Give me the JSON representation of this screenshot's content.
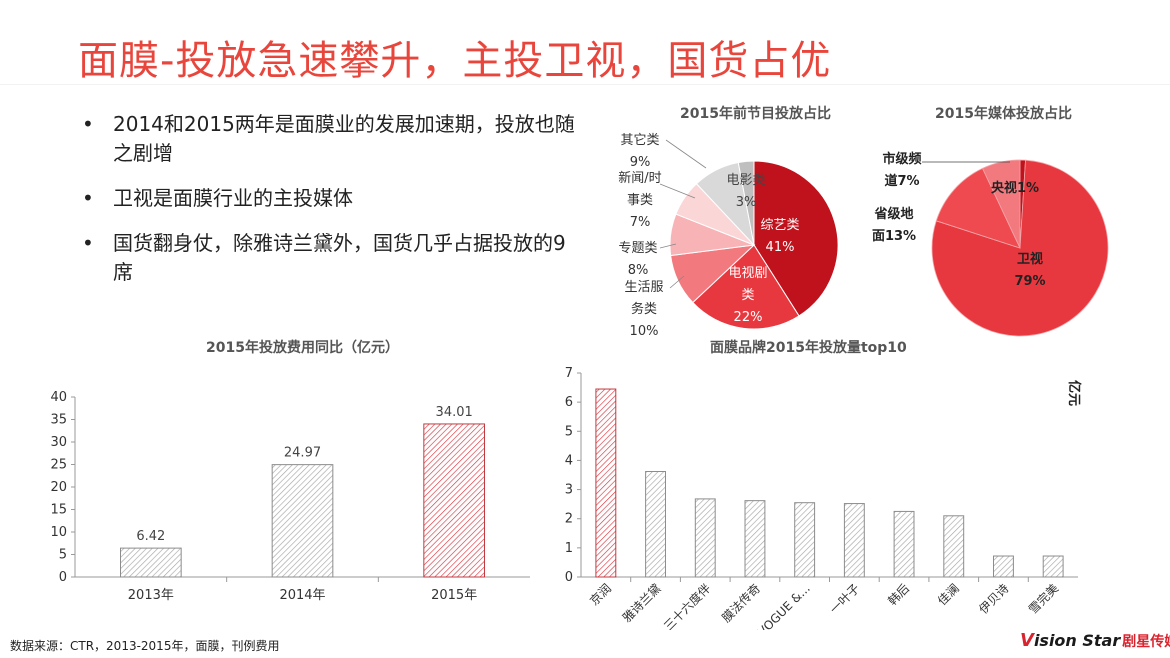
{
  "page": {
    "title": "面膜-投放急速攀升，主投卫视，国货占优",
    "bullets": [
      "2014和2015两年是面膜业的发展加速期，投放也随之剧增",
      "卫视是面膜行业的主投媒体",
      "国货翻身仗，除雅诗兰黛外，国货几乎占据投放的9席"
    ],
    "bullet_symbol": "•",
    "source": "数据来源：CTR，2013-2015年，面膜，刊例费用",
    "logo_text": "ision Star",
    "logo_mark": "V",
    "logo_cn": "剧星传媒"
  },
  "colors": {
    "title": "#e8463c",
    "dark_red": "#c0121c",
    "red": "#e8383f",
    "light_red": "#f27a7f",
    "pink": "#f7b3b6",
    "pale": "#fbd6d7",
    "gray": "#d9d9d9"
  },
  "chart_data": [
    {
      "id": "program",
      "type": "pie",
      "title": "2015年前节目投放占比",
      "slices": [
        {
          "label": "综艺类",
          "value": 41,
          "pct": "41%"
        },
        {
          "label": "电视剧类",
          "value": 22,
          "pct": "22%"
        },
        {
          "label": "生活服务类",
          "value": 10,
          "pct": "10%"
        },
        {
          "label": "专题类",
          "value": 8,
          "pct": "8%"
        },
        {
          "label": "新闻/时事类",
          "value": 7,
          "pct": "7%"
        },
        {
          "label": "其它类",
          "value": 9,
          "pct": "9%"
        },
        {
          "label": "电影类",
          "value": 3,
          "pct": "3%"
        }
      ],
      "label_lines": {
        "综艺类": [
          "综艺类",
          "41%"
        ],
        "电视剧类": [
          "电视剧",
          "类",
          "22%"
        ],
        "生活服务类": [
          "生活服",
          "务类",
          "10%"
        ],
        "专题类": [
          "专题类",
          "8%"
        ],
        "新闻/时事类": [
          "新闻/时",
          "事类",
          "7%"
        ],
        "其它类": [
          "其它类",
          "9%"
        ],
        "电影类": [
          "电影类",
          "3%"
        ]
      }
    },
    {
      "id": "media",
      "type": "pie",
      "title": "2015年媒体投放占比",
      "slices": [
        {
          "label": "央视",
          "value": 1,
          "pct": "1%"
        },
        {
          "label": "卫视",
          "value": 79,
          "pct": "79%"
        },
        {
          "label": "省级地面",
          "value": 13,
          "pct": "13%"
        },
        {
          "label": "市级频道",
          "value": 7,
          "pct": "7%"
        }
      ],
      "label_lines": {
        "央视": [
          "央视1%"
        ],
        "卫视": [
          "卫视",
          "79%"
        ],
        "省级地面": [
          "省级地",
          "面13%"
        ],
        "市级频道": [
          "市级频",
          "道7%"
        ]
      }
    },
    {
      "id": "yearly",
      "type": "bar",
      "title": "2015年投放费用同比（亿元）",
      "categories": [
        "2013年",
        "2014年",
        "2015年"
      ],
      "values": [
        6.42,
        24.97,
        34.01
      ],
      "value_labels": [
        "6.42",
        "24.97",
        "34.01"
      ],
      "ylim": [
        0,
        40
      ],
      "yticks": [
        0,
        5,
        10,
        15,
        20,
        25,
        30,
        35,
        40
      ],
      "ytick_labels": [
        "0",
        "5",
        "10",
        "15",
        "20",
        "25",
        "30",
        "35",
        "40"
      ],
      "highlight_index": 2
    },
    {
      "id": "brands",
      "type": "bar",
      "title": "面膜品牌2015年投放量top10",
      "ylabel": "亿元",
      "categories": [
        "京润",
        "雅诗兰黛",
        "三十六度伴",
        "膜法传奇",
        "VOGUE &...",
        "一叶子",
        "韩后",
        "佳澜",
        "伊贝诗",
        "雪完美"
      ],
      "values": [
        6.45,
        3.62,
        2.68,
        2.62,
        2.55,
        2.52,
        2.25,
        2.1,
        0.72,
        0.72
      ],
      "ylim": [
        0,
        7
      ],
      "yticks": [
        0,
        1,
        2,
        3,
        4,
        5,
        6,
        7
      ],
      "ytick_labels": [
        "0",
        "1",
        "2",
        "3",
        "4",
        "5",
        "6",
        "7"
      ],
      "highlight_index": 0
    }
  ]
}
